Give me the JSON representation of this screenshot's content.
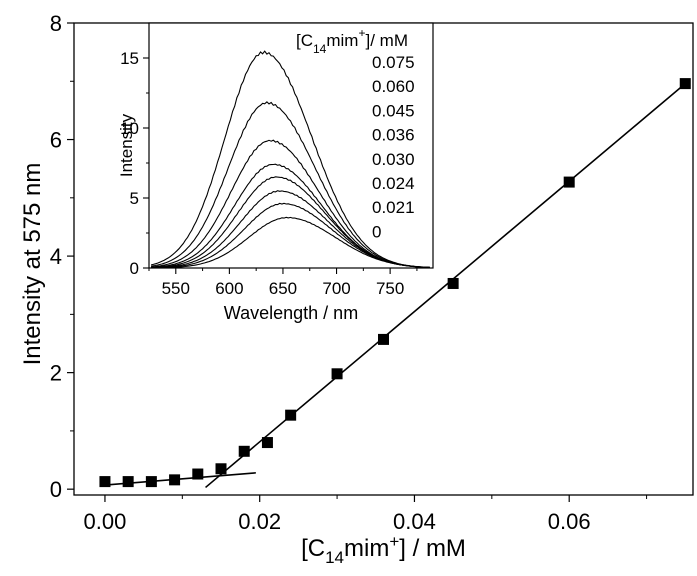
{
  "chart_data": [
    {
      "type": "scatter",
      "xlabel": {
        "pre": "[C",
        "sub": "14",
        "mid": "mim",
        "sup": "+",
        "post": "] / mM"
      },
      "ylabel": "Intensity at 575 nm",
      "xlim": [
        -0.004,
        0.076
      ],
      "ylim": [
        -0.1,
        8.0
      ],
      "xticks": [
        "0.00",
        "0.02",
        "0.04",
        "0.06"
      ],
      "xtick_values": [
        0.0,
        0.02,
        0.04,
        0.06
      ],
      "yticks": [
        "0",
        "2",
        "4",
        "6",
        "8"
      ],
      "ytick_values": [
        0,
        2,
        4,
        6,
        8
      ],
      "series": [
        {
          "marker": "square",
          "x": [
            0.0,
            0.003,
            0.006,
            0.009,
            0.012,
            0.015,
            0.018,
            0.021,
            0.024,
            0.03,
            0.036,
            0.045,
            0.06,
            0.075
          ],
          "y": [
            0.13,
            0.13,
            0.13,
            0.16,
            0.26,
            0.35,
            0.65,
            0.8,
            1.27,
            1.98,
            2.57,
            3.53,
            5.27,
            6.96
          ]
        }
      ],
      "fit_lines": [
        {
          "x": [
            0.0,
            0.0195
          ],
          "y": [
            0.07,
            0.28
          ]
        },
        {
          "x": [
            0.013,
            0.075
          ],
          "y": [
            0.03,
            6.96
          ]
        }
      ],
      "grid": false
    },
    {
      "type": "line",
      "xlabel": "Wavelength / nm",
      "ylabel": "Intensity",
      "xlim": [
        525,
        790
      ],
      "ylim": [
        0,
        17.5
      ],
      "xticks": [
        "550",
        "600",
        "650",
        "700",
        "750"
      ],
      "xtick_values": [
        550,
        600,
        650,
        700,
        750
      ],
      "yticks": [
        "0",
        "5",
        "10",
        "15"
      ],
      "ytick_values": [
        0,
        5,
        10,
        15
      ],
      "legend_title": {
        "pre": "[C",
        "sub": "14",
        "mid": "mim",
        "sup": "+",
        "post": "]/ mM"
      },
      "legend_entries": [
        "0.075",
        "0.060",
        "0.045",
        "0.036",
        "0.030",
        "0.024",
        "0.021",
        "0"
      ],
      "series": [
        {
          "name": "0.075",
          "peak_x": 632,
          "peak_y": 15.4
        },
        {
          "name": "0.060",
          "peak_x": 635,
          "peak_y": 11.8
        },
        {
          "name": "0.045",
          "peak_x": 638,
          "peak_y": 9.1
        },
        {
          "name": "0.036",
          "peak_x": 641,
          "peak_y": 7.4
        },
        {
          "name": "0.030",
          "peak_x": 644,
          "peak_y": 6.5
        },
        {
          "name": "0.024",
          "peak_x": 647,
          "peak_y": 5.5
        },
        {
          "name": "0.021",
          "peak_x": 650,
          "peak_y": 4.6
        },
        {
          "name": "0",
          "peak_x": 654,
          "peak_y": 3.6
        }
      ],
      "grid": false
    }
  ]
}
